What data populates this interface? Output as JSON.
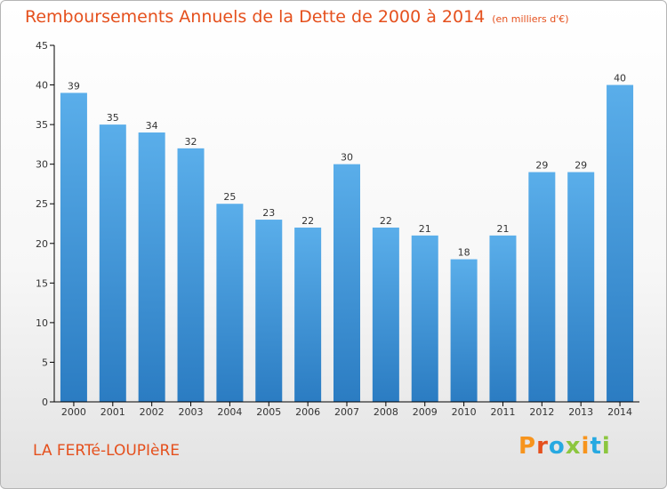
{
  "chart_data": {
    "type": "bar",
    "title": "Remboursements Annuels de la Dette de 2000 à 2014",
    "subtitle": "(en milliers d'€)",
    "categories": [
      "2000",
      "2001",
      "2002",
      "2003",
      "2004",
      "2005",
      "2006",
      "2007",
      "2008",
      "2009",
      "2010",
      "2011",
      "2012",
      "2013",
      "2014"
    ],
    "values": [
      39,
      35,
      34,
      32,
      25,
      23,
      22,
      30,
      22,
      21,
      18,
      21,
      29,
      29,
      40
    ],
    "ylim": [
      0,
      45
    ],
    "yticks": [
      0,
      5,
      10,
      15,
      20,
      25,
      30,
      35,
      40,
      45
    ],
    "xlabel": "",
    "ylabel": "",
    "bar_color": "#4f9ee0"
  },
  "footer": {
    "place": "LA FERTé-LOUPIèRE",
    "logo": "Proxiti",
    "logo_colors": [
      "#f7941d",
      "#e5501d",
      "#27a9e1",
      "#8cc63f",
      "#f7941d",
      "#27a9e1",
      "#8cc63f"
    ]
  },
  "colors": {
    "accent": "#e5501d",
    "axis": "#000000",
    "text": "#333333"
  }
}
